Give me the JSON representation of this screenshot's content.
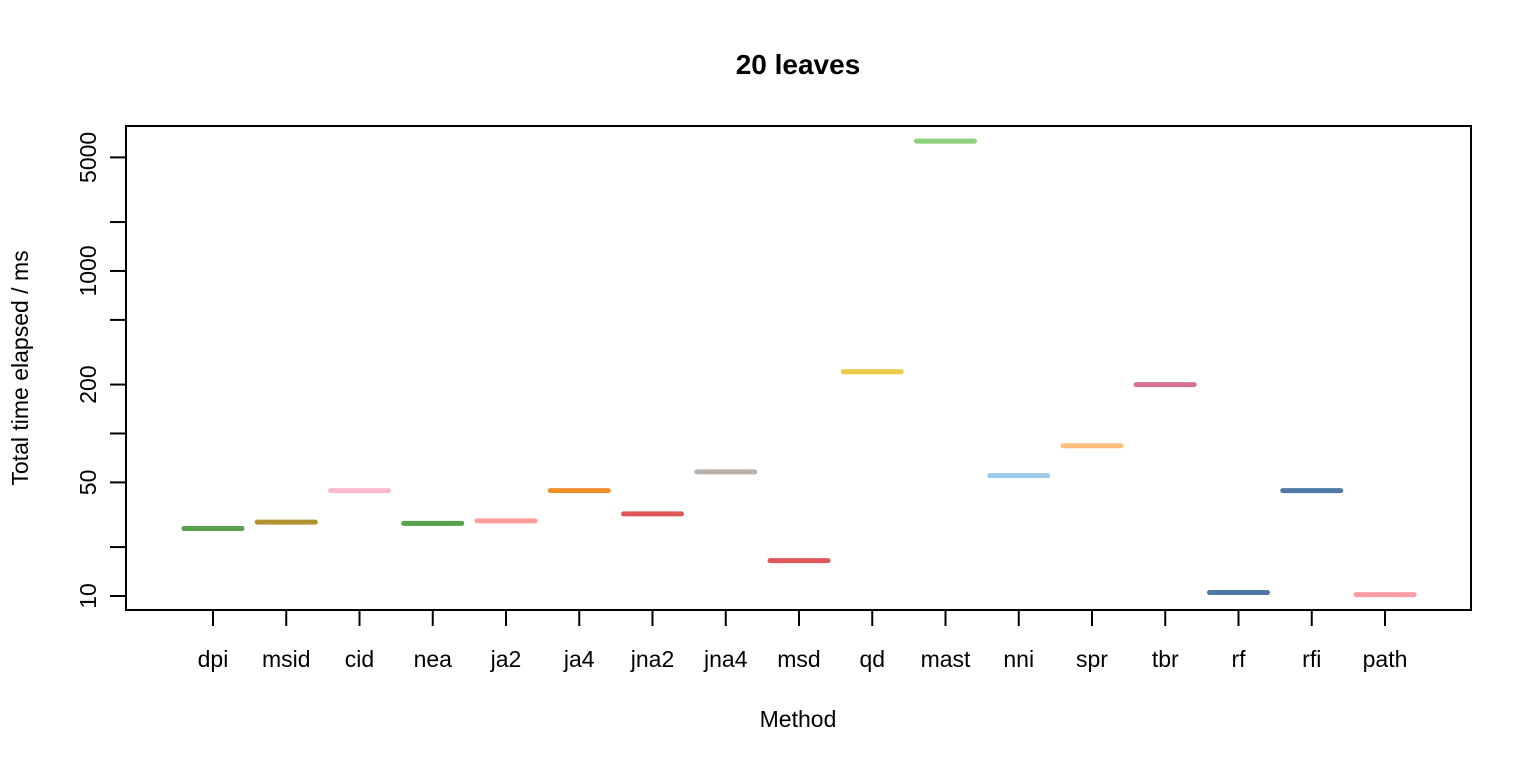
{
  "chart_data": {
    "type": "line",
    "title": "20 leaves",
    "xlabel": "Method",
    "ylabel": "Total time elapsed / ms",
    "y_scale": "log",
    "ylim": [
      8.2,
      7800
    ],
    "y_ticks": [
      10,
      20,
      50,
      100,
      200,
      500,
      1000,
      2000,
      5000
    ],
    "y_tick_labels": [
      "10",
      "",
      "50",
      "",
      "200",
      "",
      "1000",
      "",
      "5000"
    ],
    "grid": false,
    "categories": [
      "dpi",
      "msid",
      "cid",
      "nea",
      "ja2",
      "ja4",
      "jna2",
      "jna4",
      "msd",
      "qd",
      "mast",
      "nni",
      "spr",
      "tbr",
      "rf",
      "rfi",
      "path"
    ],
    "values": [
      26,
      28.5,
      44.5,
      28,
      29,
      44.5,
      32,
      58,
      16.5,
      240,
      6300,
      55,
      84,
      200,
      10.5,
      44.5,
      10.2
    ],
    "colors": [
      "#59a14f",
      "#b2912f",
      "#f8bbd0",
      "#59a14f",
      "#ff9d9a",
      "#f28e2b",
      "#e15759",
      "#bab0ac",
      "#e15759",
      "#edc948",
      "#8cd17d",
      "#9ecae9",
      "#ffbe7d",
      "#d37295",
      "#4e79a7",
      "#4e79a7",
      "#ff9da7"
    ]
  }
}
